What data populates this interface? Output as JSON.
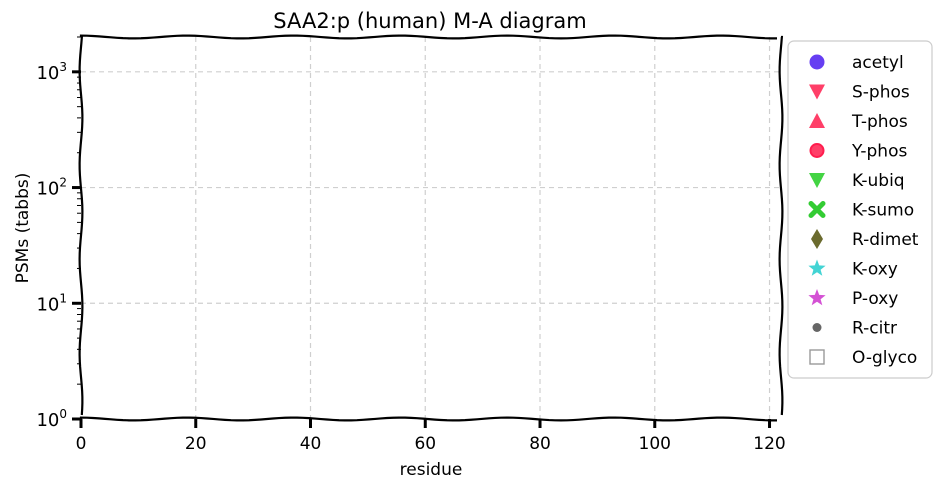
{
  "chart_data": {
    "type": "scatter",
    "title": "SAA2:p (human) M-A diagram",
    "xlabel": "residue",
    "ylabel": "PSMs (tabbs)",
    "xlim": [
      0,
      122
    ],
    "ylim": [
      1,
      2000
    ],
    "yscale": "log",
    "grid": true,
    "x_ticks": [
      "0",
      "20",
      "40",
      "60",
      "80",
      "100",
      "120"
    ],
    "x_tick_values": [
      0,
      20,
      40,
      60,
      80,
      100,
      120
    ],
    "y_ticks": [
      {
        "value": 1,
        "base": "10",
        "exp": "0"
      },
      {
        "value": 10,
        "base": "10",
        "exp": "1"
      },
      {
        "value": 100,
        "base": "10",
        "exp": "2"
      },
      {
        "value": 1000,
        "base": "10",
        "exp": "3"
      }
    ],
    "legend_position": "outside-right",
    "series": [
      {
        "name": "acetyl",
        "marker": "circle",
        "color": "#4b1cf0",
        "x": [],
        "y": []
      },
      {
        "name": "S-phos",
        "marker": "triangle-down",
        "color": "#ff1d4e",
        "x": [],
        "y": []
      },
      {
        "name": "T-phos",
        "marker": "triangle-up",
        "color": "#ff1d4e",
        "x": [],
        "y": []
      },
      {
        "name": "Y-phos",
        "marker": "circle-ring",
        "color": "#ff1d4e",
        "x": [],
        "y": []
      },
      {
        "name": "K-ubiq",
        "marker": "triangle-down",
        "color": "#22cc22",
        "x": [],
        "y": []
      },
      {
        "name": "K-sumo",
        "marker": "x",
        "color": "#33cc33",
        "x": [],
        "y": []
      },
      {
        "name": "R-dimet",
        "marker": "thin-diamond",
        "color": "#6b6b2e",
        "x": [],
        "y": []
      },
      {
        "name": "K-oxy",
        "marker": "star",
        "color": "#22cccc",
        "x": [],
        "y": []
      },
      {
        "name": "P-oxy",
        "marker": "star",
        "color": "#cc33cc",
        "x": [],
        "y": []
      },
      {
        "name": "R-citr",
        "marker": "small-circle",
        "color": "#666666",
        "x": [],
        "y": []
      },
      {
        "name": "O-glyco",
        "marker": "square-open",
        "color": "#999999",
        "x": [],
        "y": []
      }
    ]
  }
}
